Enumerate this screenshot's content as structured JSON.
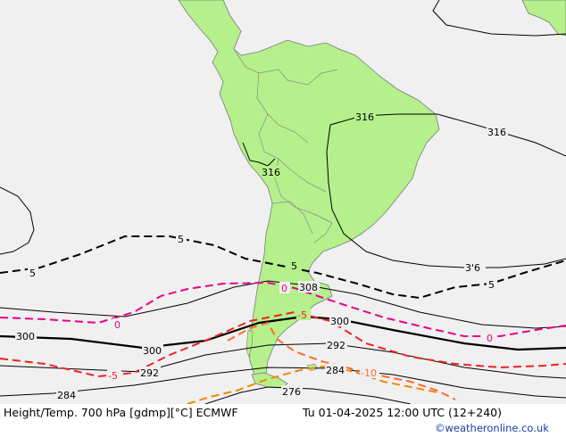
{
  "colors": {
    "land": "#b5f08c",
    "sea": "#f0f0f0",
    "border": "#888888",
    "height_contour": "#000000",
    "temp_minus5": "#000000",
    "temp_0": "#e8008a",
    "temp_plus5": "#ee2222",
    "temp_minus10": "#ff6a2a",
    "temp_minus15": "#f08a00"
  },
  "height_labels": [
    "316",
    "316",
    "316",
    "3'6",
    "308",
    "300",
    "300",
    "300",
    "292",
    "292",
    "284",
    "284",
    "276"
  ],
  "temp_labels": [
    "5",
    "5",
    "5",
    "5",
    "0",
    "0",
    "0",
    "-5",
    "-5",
    "-10"
  ],
  "footer": {
    "title": "Height/Temp. 700 hPa [gdmp][°C] ECMWF",
    "valid_time": "Tu 01-04-2025 12:00 UTC (12+240)",
    "credit": "©weatheronline.co.uk"
  }
}
